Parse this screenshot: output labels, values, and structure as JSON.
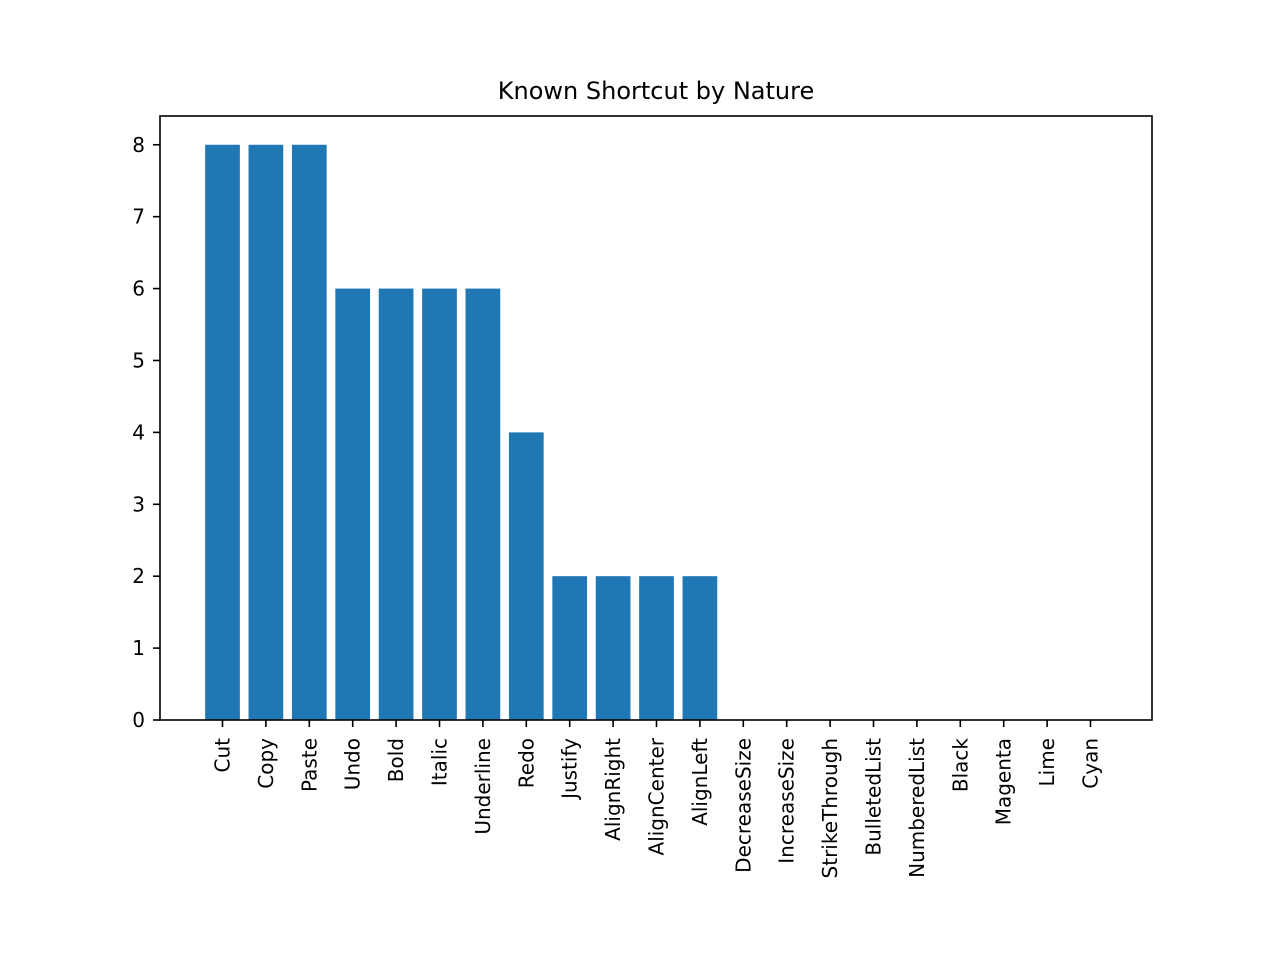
{
  "chart_data": {
    "type": "bar",
    "title": "Known Shortcut by Nature",
    "xlabel": "",
    "ylabel": "",
    "categories": [
      "Cut",
      "Copy",
      "Paste",
      "Undo",
      "Bold",
      "Italic",
      "Underline",
      "Redo",
      "Justify",
      "AlignRight",
      "AlignCenter",
      "AlignLeft",
      "DecreaseSize",
      "IncreaseSize",
      "StrikeThrough",
      "BulletedList",
      "NumberedList",
      "Black",
      "Magenta",
      "Lime",
      "Cyan"
    ],
    "values": [
      8,
      8,
      8,
      6,
      6,
      6,
      6,
      4,
      2,
      2,
      2,
      2,
      0,
      0,
      0,
      0,
      0,
      0,
      0,
      0,
      0
    ],
    "yticks": [
      0,
      1,
      2,
      3,
      4,
      5,
      6,
      7,
      8
    ],
    "ylim": [
      0,
      8.4
    ],
    "grid": false,
    "legend": "none",
    "bar_color": "#1f77b4"
  }
}
